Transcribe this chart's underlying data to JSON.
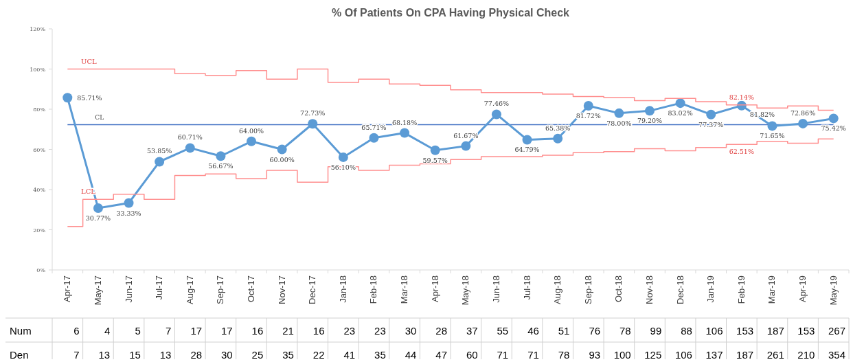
{
  "chart_data": {
    "type": "line",
    "title": "% Of Patients On CPA Having Physical Check",
    "categories": [
      "Apr-17",
      "May-17",
      "Jun-17",
      "Jul-17",
      "Aug-17",
      "Sep-17",
      "Oct-17",
      "Nov-17",
      "Dec-17",
      "Jan-18",
      "Feb-18",
      "Mar-18",
      "Apr-18",
      "May-18",
      "Jun-18",
      "Jul-18",
      "Aug-18",
      "Sep-18",
      "Oct-18",
      "Nov-18",
      "Dec-18",
      "Jan-19",
      "Feb-19",
      "Mar-19",
      "Apr-19",
      "May-19"
    ],
    "series": [
      {
        "color": "#5b9bd5",
        "marker": "circle",
        "values": [
          85.71,
          30.77,
          33.33,
          53.85,
          60.71,
          56.67,
          64.0,
          60.0,
          72.73,
          56.1,
          65.71,
          68.18,
          59.57,
          61.67,
          77.46,
          64.79,
          65.38,
          81.72,
          78.0,
          79.2,
          83.02,
          77.37,
          81.82,
          71.65,
          72.86,
          75.42
        ],
        "value_labels": [
          "85.71%",
          "30.77%",
          "33.33%",
          "53.85%",
          "60.71%",
          "56.67%",
          "64.00%",
          "60.00%",
          "72.73%",
          "56.10%",
          "65.71%",
          "68.18%",
          "59.57%",
          "61.67%",
          "77.46%",
          "64.79%",
          "65.38%",
          "81.72%",
          "78.00%",
          "79.20%",
          "83.02%",
          "77.37%",
          "81.82%",
          "71.65%",
          "72.86%",
          "75.42%"
        ]
      },
      {
        "type": "step",
        "name": "UCL",
        "color": "#ff8f8f",
        "marker": "none",
        "values": [
          100,
          100,
          100,
          100,
          97.7,
          96.8,
          99.2,
          95.0,
          100,
          93.3,
          95.0,
          92.6,
          91.9,
          89.7,
          88.3,
          88.3,
          87.5,
          86.3,
          85.8,
          84.3,
          85.4,
          83.8,
          82.14,
          80.6,
          81.6,
          79.5
        ],
        "value_labels": [
          null,
          null,
          null,
          null,
          null,
          null,
          null,
          null,
          null,
          null,
          null,
          null,
          null,
          null,
          null,
          null,
          null,
          null,
          null,
          null,
          null,
          null,
          "82.14%",
          null,
          null,
          null
        ]
      },
      {
        "type": "step",
        "name": "LCL",
        "color": "#ff8f8f",
        "marker": "none",
        "values": [
          21.6,
          35.1,
          37.7,
          35.1,
          47.0,
          47.8,
          45.5,
          49.6,
          43.7,
          51.4,
          49.6,
          52.1,
          52.8,
          55.0,
          56.4,
          56.4,
          57.1,
          58.4,
          58.9,
          60.3,
          59.3,
          60.9,
          62.51,
          64.0,
          63.1,
          65.2
        ],
        "value_labels": [
          null,
          null,
          null,
          null,
          null,
          null,
          null,
          null,
          null,
          null,
          null,
          null,
          null,
          null,
          null,
          null,
          null,
          null,
          null,
          null,
          null,
          null,
          "62.51%",
          null,
          null,
          null
        ]
      }
    ],
    "ylim": [
      0,
      120
    ],
    "yticks": [
      {
        "value": 0,
        "label": "0%"
      },
      {
        "value": 20,
        "label": "20%"
      },
      {
        "value": 40,
        "label": "40%"
      },
      {
        "value": 60,
        "label": "60%"
      },
      {
        "value": 80,
        "label": "80%"
      },
      {
        "value": 100,
        "label": "100%"
      },
      {
        "value": 120,
        "label": "120%"
      }
    ],
    "ref_lines": [
      {
        "axis": "y",
        "value": 72.33,
        "label": "CL",
        "color": "#4472c4"
      }
    ],
    "annotations": [
      "Num",
      "6",
      "4",
      "5",
      "7",
      "17",
      "17",
      "16",
      "21",
      "16",
      "23",
      "23",
      "30",
      "28",
      "37",
      "55",
      "46",
      "51",
      "76",
      "78",
      "99",
      "88",
      "106",
      "153",
      "187",
      "153",
      "267",
      "Den",
      "7",
      "13",
      "15",
      "13",
      "28",
      "30",
      "25",
      "35",
      "22",
      "41",
      "35",
      "44",
      "47",
      "60",
      "71",
      "71",
      "78",
      "93",
      "100",
      "125",
      "106",
      "137",
      "187",
      "261",
      "210",
      "354"
    ]
  }
}
